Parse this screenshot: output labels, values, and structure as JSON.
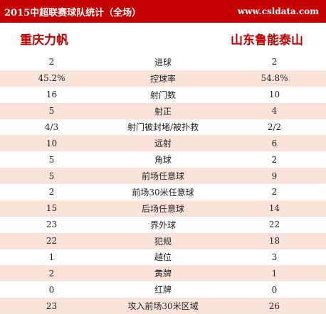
{
  "header": {
    "title": "2015中超联赛球队统计（全场）",
    "site": "www.csldata.com"
  },
  "teams": {
    "home": "重庆力帆",
    "away": "山东鲁能泰山"
  },
  "stats": [
    {
      "label": "进球",
      "home": "2",
      "away": "2"
    },
    {
      "label": "控球率",
      "home": "45.2%",
      "away": "54.8%"
    },
    {
      "label": "射门数",
      "home": "16",
      "away": "10"
    },
    {
      "label": "射正",
      "home": "5",
      "away": "4"
    },
    {
      "label": "射门被封堵/被扑救",
      "home": "4/3",
      "away": "2/2"
    },
    {
      "label": "远射",
      "home": "10",
      "away": "6"
    },
    {
      "label": "角球",
      "home": "5",
      "away": "2"
    },
    {
      "label": "前场任意球",
      "home": "5",
      "away": "9"
    },
    {
      "label": "前场30米任意球",
      "home": "2",
      "away": "2"
    },
    {
      "label": "后场任意球",
      "home": "15",
      "away": "14"
    },
    {
      "label": "界外球",
      "home": "23",
      "away": "22"
    },
    {
      "label": "犯规",
      "home": "22",
      "away": "18"
    },
    {
      "label": "越位",
      "home": "1",
      "away": "3"
    },
    {
      "label": "黄牌",
      "home": "2",
      "away": "1"
    },
    {
      "label": "红牌",
      "home": "0",
      "away": "0"
    },
    {
      "label": "攻入前场30米区域",
      "home": "23",
      "away": "26"
    }
  ],
  "colors": {
    "header_bg": "#c40000",
    "team_name": "#c00000",
    "alt_row_bg": "#fbe3da"
  }
}
